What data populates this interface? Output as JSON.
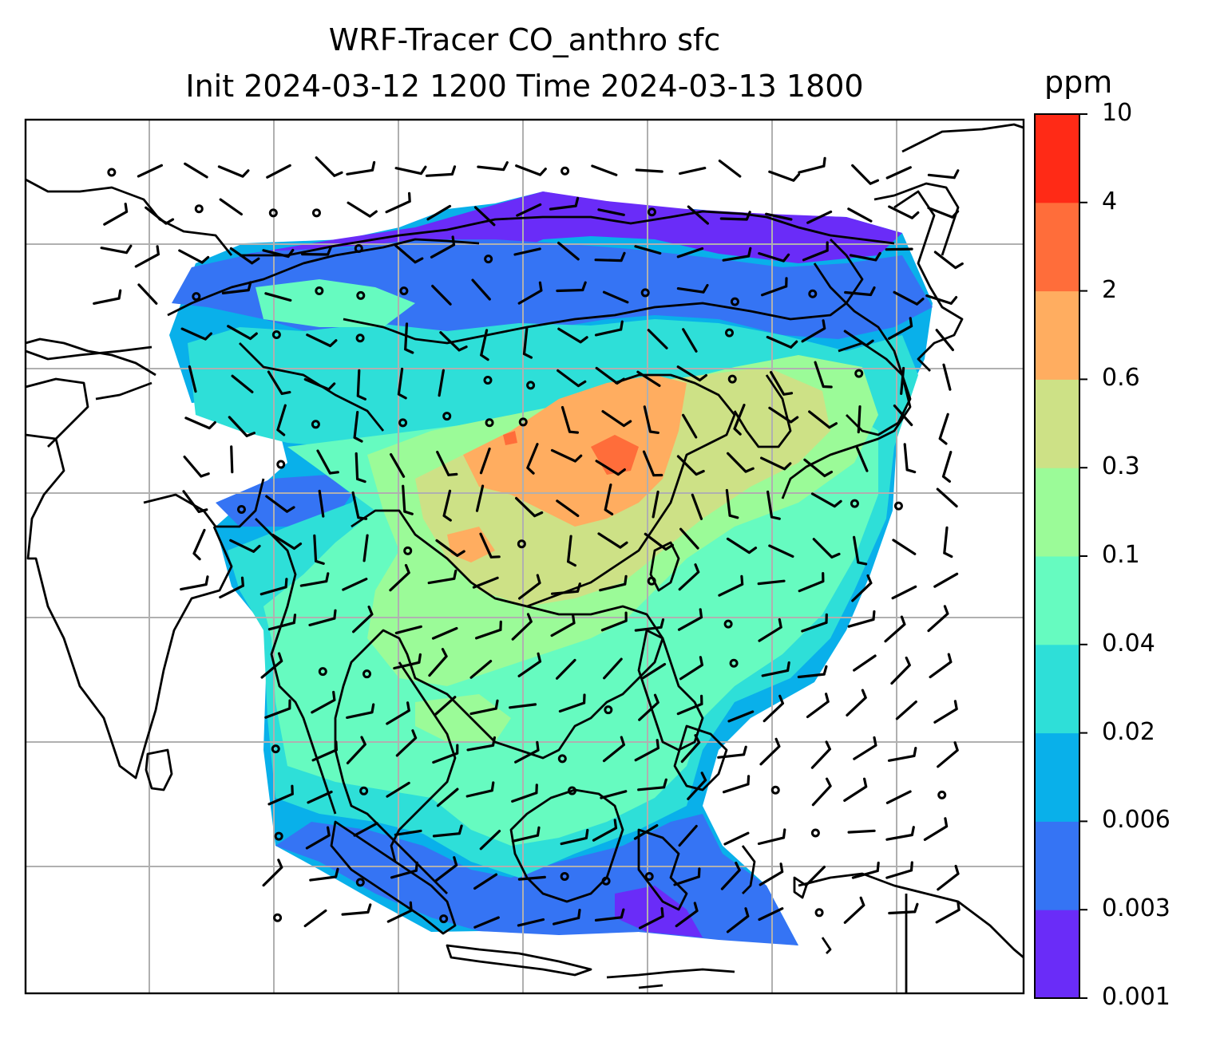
{
  "title": "WRF-Tracer CO_anthro sfc",
  "subtitle": "Init 2024-03-12 1200 Time 2024-03-13 1800",
  "chart_data": {
    "type": "heatmap",
    "title": "WRF-Tracer CO_anthro sfc",
    "subtitle": "Init 2024-03-12 1200 Time 2024-03-13 1800",
    "grid": true,
    "colorbar": {
      "unit": "ppm",
      "levels": [
        "0.001",
        "0.003",
        "0.006",
        "0.02",
        "0.04",
        "0.1",
        "0.3",
        "0.6",
        "2",
        "4",
        "10"
      ],
      "colors": [
        "#6a2cf8",
        "#3574f4",
        "#09b0ea",
        "#2edfd8",
        "#66fbc0",
        "#9bfb98",
        "#cde186",
        "#ffad60",
        "#ff6d3a",
        "#ff2a16"
      ],
      "position": "right"
    },
    "overlay": "wind barbs with calm-wind circles",
    "coastlines": true
  },
  "colors": {
    "coast": "#000000",
    "gridline": "#b0b0b0",
    "frame": "#000000"
  }
}
